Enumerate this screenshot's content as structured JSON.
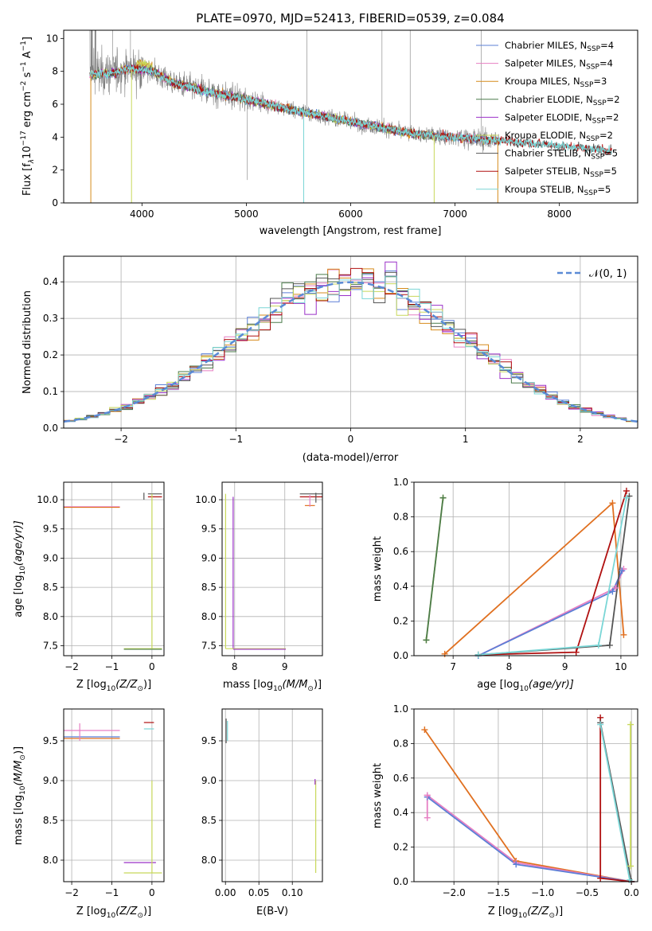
{
  "colors": {
    "chabrier_miles": "#5b7fd6",
    "salpeter_miles": "#e67fc3",
    "kroupa_miles": "#d68b1c",
    "chabrier_elodie": "#4a7a4a",
    "salpeter_elodie": "#9b30c8",
    "kroupa_elodie": "#c8d85a",
    "chabrier_stelib": "#555555",
    "salpeter_stelib": "#b01010",
    "kroupa_stelib": "#7ad6d6",
    "data": "#808080",
    "normal": "#5a8ad6",
    "orange": "#e07020",
    "yellowgreen": "#c0e040"
  },
  "chart_data": [
    {
      "id": "spectrum",
      "type": "line",
      "title": "PLATE=0970, MJD=52413, FIBERID=0539, z=0.084",
      "xlabel": "wavelength [Angstrom, rest frame]",
      "ylabel": "Flux [f",
      "ylabel_parts": [
        "Flux [f",
        "λ",
        "10",
        "−17",
        " erg cm",
        "−2",
        " s",
        "−1",
        " A",
        "−1",
        "]"
      ],
      "xlim": [
        3250,
        8750
      ],
      "ylim": [
        0,
        10.5
      ],
      "xticks": [
        4000,
        5000,
        6000,
        7000,
        8000
      ],
      "yticks": [
        0,
        2,
        4,
        6,
        8,
        10
      ],
      "legend_position": "top-right",
      "legend": [
        {
          "label": "Chabrier MILES, N",
          "sub": "SSP",
          "tail": "=4",
          "color_key": "chabrier_miles"
        },
        {
          "label": "Salpeter MILES, N",
          "sub": "SSP",
          "tail": "=4",
          "color_key": "salpeter_miles"
        },
        {
          "label": "Kroupa MILES, N",
          "sub": "SSP",
          "tail": "=3",
          "color_key": "kroupa_miles"
        },
        {
          "label": "Chabrier ELODIE, N",
          "sub": "SSP",
          "tail": "=2",
          "color_key": "chabrier_elodie"
        },
        {
          "label": "Salpeter ELODIE, N",
          "sub": "SSP",
          "tail": "=2",
          "color_key": "salpeter_elodie"
        },
        {
          "label": "Kroupa ELODIE, N",
          "sub": "SSP",
          "tail": "=2",
          "color_key": "kroupa_elodie"
        },
        {
          "label": "Chabrier STELIB, N",
          "sub": "SSP",
          "tail": "=5",
          "color_key": "chabrier_stelib"
        },
        {
          "label": "Salpeter STELIB, N",
          "sub": "SSP",
          "tail": "=5",
          "color_key": "salpeter_stelib"
        },
        {
          "label": "Kroupa STELIB, N",
          "sub": "SSP",
          "tail": "=5",
          "color_key": "kroupa_stelib"
        }
      ],
      "continuum": {
        "x": [
          3500,
          3700,
          3900,
          4100,
          4300,
          4600,
          5000,
          5400,
          5800,
          6200,
          6600,
          7000,
          7400,
          7800,
          8200,
          8500
        ],
        "y": [
          7.8,
          7.9,
          8.2,
          8.0,
          7.3,
          6.8,
          6.3,
          5.7,
          5.2,
          4.7,
          4.2,
          4.0,
          3.8,
          3.6,
          3.35,
          3.15
        ]
      }
    },
    {
      "id": "residuals",
      "type": "histogram",
      "xlabel": "(data-model)/error",
      "ylabel": "Normed distribution",
      "xlim": [
        -2.5,
        2.5
      ],
      "ylim": [
        0,
        0.47
      ],
      "xticks": [
        -2,
        -1,
        0,
        1,
        2
      ],
      "yticks": [
        0.0,
        0.1,
        0.2,
        0.3,
        0.4
      ],
      "legend_position": "top-right",
      "legend": [
        {
          "label": "𝒩(0, 1)",
          "color_key": "normal"
        }
      ]
    },
    {
      "id": "age_vs_z",
      "type": "scatter",
      "xlabel": "Z [log",
      "xlabel_parts": [
        "Z [log",
        "10",
        "(Z/Z",
        "⊙",
        ")]"
      ],
      "ylabel_parts": [
        "age  [log",
        "10",
        "(age/yr)]"
      ],
      "xlim": [
        -2.2,
        0.3
      ],
      "ylim": [
        7.33,
        10.3
      ],
      "xticks": [
        -2,
        -1,
        0
      ],
      "yticks": [
        7.5,
        8.0,
        8.5,
        9.0,
        9.5,
        10.0
      ],
      "segments": [
        {
          "x": [
            -2.3,
            -0.8
          ],
          "y": [
            9.88,
            9.88
          ],
          "c": "salpeter_miles"
        },
        {
          "x": [
            -2.3,
            -0.8
          ],
          "y": [
            9.87,
            9.87
          ],
          "c": "orange"
        },
        {
          "x": [
            -0.1,
            0.25
          ],
          "y": [
            10.1,
            10.1
          ],
          "c": "chabrier_stelib"
        },
        {
          "x": [
            -0.1,
            0.25
          ],
          "y": [
            10.05,
            10.05
          ],
          "c": "salpeter_stelib"
        },
        {
          "x": [
            -0.7,
            0.25
          ],
          "y": [
            7.45,
            7.45
          ],
          "c": "kroupa_elodie"
        },
        {
          "x": [
            -0.7,
            0.25
          ],
          "y": [
            7.44,
            7.44
          ],
          "c": "chabrier_elodie"
        },
        {
          "x": [
            0.0,
            0.0
          ],
          "y": [
            7.45,
            10.1
          ],
          "c": "kroupa_elodie"
        },
        {
          "x": [
            -0.2,
            -0.2
          ],
          "y": [
            10.0,
            10.12
          ],
          "c": "chabrier_stelib"
        }
      ]
    },
    {
      "id": "age_vs_mass",
      "type": "scatter",
      "xlabel_parts": [
        "mass [log",
        "10",
        "(M/M",
        "⊙",
        ")]"
      ],
      "xlim": [
        7.75,
        9.75
      ],
      "ylim": [
        7.33,
        10.3
      ],
      "xticks": [
        8,
        9
      ],
      "yticks": [
        7.5,
        8.0,
        8.5,
        9.0,
        9.5,
        10.0
      ],
      "segments": [
        {
          "x": [
            7.82,
            7.82
          ],
          "y": [
            7.45,
            10.1
          ],
          "c": "kroupa_elodie"
        },
        {
          "x": [
            7.97,
            7.97
          ],
          "y": [
            7.45,
            10.05
          ],
          "c": "salpeter_elodie"
        },
        {
          "x": [
            7.82,
            9.02
          ],
          "y": [
            7.45,
            7.45
          ],
          "c": "kroupa_elodie"
        },
        {
          "x": [
            7.97,
            9.02
          ],
          "y": [
            7.44,
            7.44
          ],
          "c": "salpeter_elodie"
        },
        {
          "x": [
            9.3,
            9.75
          ],
          "y": [
            10.1,
            10.1
          ],
          "c": "chabrier_stelib"
        },
        {
          "x": [
            9.3,
            9.75
          ],
          "y": [
            10.05,
            10.05
          ],
          "c": "salpeter_stelib"
        },
        {
          "x": [
            9.4,
            9.6
          ],
          "y": [
            9.9,
            9.9
          ],
          "c": "orange"
        },
        {
          "x": [
            9.5,
            9.5
          ],
          "y": [
            9.88,
            10.08
          ],
          "c": "salpeter_miles"
        },
        {
          "x": [
            9.62,
            9.62
          ],
          "y": [
            9.95,
            10.12
          ],
          "c": "chabrier_stelib"
        }
      ]
    },
    {
      "id": "massweight_vs_age",
      "type": "line",
      "xlabel_parts": [
        "age  [log",
        "10",
        "(age/yr)]"
      ],
      "ylabel": "mass weight",
      "xlim": [
        6.3,
        10.3
      ],
      "ylim": [
        0,
        1
      ],
      "xticks": [
        7,
        8,
        9,
        10
      ],
      "yticks": [
        0.0,
        0.2,
        0.4,
        0.6,
        0.8,
        1.0
      ],
      "series": [
        {
          "c": "kroupa_elodie",
          "x": [
            6.52,
            6.82
          ],
          "y": [
            0.09,
            0.91
          ]
        },
        {
          "c": "chabrier_elodie",
          "x": [
            6.52,
            6.82
          ],
          "y": [
            0.09,
            0.91
          ]
        },
        {
          "c": "orange",
          "x": [
            6.85,
            9.85,
            10.05
          ],
          "y": [
            0.01,
            0.88,
            0.12
          ]
        },
        {
          "c": "salpeter_miles",
          "x": [
            7.45,
            9.9,
            10.05
          ],
          "y": [
            0.0,
            0.39,
            0.5
          ]
        },
        {
          "c": "chabrier_miles",
          "x": [
            7.45,
            9.85,
            10.02
          ],
          "y": [
            0.0,
            0.37,
            0.49
          ]
        },
        {
          "c": "salpeter_stelib",
          "x": [
            7.45,
            9.2,
            10.1
          ],
          "y": [
            0.005,
            0.02,
            0.95
          ]
        },
        {
          "c": "chabrier_stelib",
          "x": [
            7.45,
            9.8,
            10.15
          ],
          "y": [
            0.005,
            0.06,
            0.92
          ]
        },
        {
          "c": "kroupa_stelib",
          "x": [
            7.45,
            9.6,
            10.1
          ],
          "y": [
            0.005,
            0.06,
            0.91
          ]
        }
      ]
    },
    {
      "id": "mass_vs_z",
      "type": "scatter",
      "xlabel_parts": [
        "Z [log",
        "10",
        "(Z/Z",
        "⊙",
        ")]"
      ],
      "ylabel_parts": [
        "mass [log",
        "10",
        "(M/M",
        "⊙",
        ")]"
      ],
      "xlim": [
        -2.2,
        0.3
      ],
      "ylim": [
        7.73,
        9.9
      ],
      "xticks": [
        -2,
        -1,
        0
      ],
      "yticks": [
        8.0,
        8.5,
        9.0,
        9.5
      ],
      "segments": [
        {
          "x": [
            -2.3,
            -0.8
          ],
          "y": [
            9.63,
            9.63
          ],
          "c": "salpeter_miles"
        },
        {
          "x": [
            -2.3,
            -0.8
          ],
          "y": [
            9.55,
            9.55
          ],
          "c": "chabrier_miles"
        },
        {
          "x": [
            -2.3,
            -0.8
          ],
          "y": [
            9.53,
            9.53
          ],
          "c": "orange"
        },
        {
          "x": [
            -0.2,
            0.05
          ],
          "y": [
            9.73,
            9.73
          ],
          "c": "salpeter_stelib"
        },
        {
          "x": [
            -0.2,
            0.05
          ],
          "y": [
            9.65,
            9.65
          ],
          "c": "kroupa_stelib"
        },
        {
          "x": [
            -0.7,
            0.1
          ],
          "y": [
            7.97,
            7.97
          ],
          "c": "salpeter_elodie"
        },
        {
          "x": [
            -0.7,
            0.25
          ],
          "y": [
            7.84,
            7.84
          ],
          "c": "kroupa_elodie"
        },
        {
          "x": [
            0.0,
            0.0
          ],
          "y": [
            7.84,
            9.0
          ],
          "c": "kroupa_elodie"
        },
        {
          "x": [
            -1.8,
            -1.8
          ],
          "y": [
            9.5,
            9.72
          ],
          "c": "salpeter_miles"
        }
      ]
    },
    {
      "id": "mass_vs_ebv",
      "type": "scatter",
      "xlabel": "E(B-V)",
      "xlim": [
        -0.005,
        0.145
      ],
      "ylim": [
        7.73,
        9.9
      ],
      "xticks": [
        0.0,
        0.05,
        0.1
      ],
      "xticklabels": [
        "0.00",
        "0.05",
        "0.10"
      ],
      "yticks": [
        8.0,
        8.5,
        9.0,
        9.5
      ],
      "segments": [
        {
          "x": [
            0.001,
            0.001
          ],
          "y": [
            9.47,
            9.78
          ],
          "c": "chabrier_stelib"
        },
        {
          "x": [
            0.003,
            0.003
          ],
          "y": [
            9.5,
            9.75
          ],
          "c": "kroupa_stelib"
        },
        {
          "x": [
            0.135,
            0.135
          ],
          "y": [
            7.84,
            9.0
          ],
          "c": "kroupa_elodie"
        },
        {
          "x": [
            0.134,
            0.134
          ],
          "y": [
            8.95,
            9.02
          ],
          "c": "salpeter_elodie"
        }
      ]
    },
    {
      "id": "massweight_vs_z",
      "type": "line",
      "xlabel_parts": [
        "Z [log",
        "10",
        "(Z/Z",
        "⊙",
        ")]"
      ],
      "ylabel": "mass weight",
      "xlim": [
        -2.45,
        0.07
      ],
      "ylim": [
        0,
        1
      ],
      "xticks": [
        -2.0,
        -1.5,
        -1.0,
        -0.5,
        0.0
      ],
      "xticklabels": [
        "−2.0",
        "−1.5",
        "−1.0",
        "−0.5",
        "0.0"
      ],
      "yticks": [
        0.0,
        0.2,
        0.4,
        0.6,
        0.8,
        1.0
      ],
      "series": [
        {
          "c": "orange",
          "x": [
            -2.33,
            -1.3,
            0.0
          ],
          "y": [
            0.88,
            0.12,
            0.0
          ]
        },
        {
          "c": "salpeter_miles",
          "x": [
            -2.3,
            -1.3,
            0.0
          ],
          "y": [
            0.5,
            0.11,
            0.0
          ]
        },
        {
          "c": "chabrier_miles",
          "x": [
            -2.3,
            -1.3,
            0.0
          ],
          "y": [
            0.49,
            0.1,
            0.0
          ]
        },
        {
          "c": "salpeter_miles",
          "x": [
            -2.3,
            -2.3
          ],
          "y": [
            0.37,
            0.5
          ]
        },
        {
          "c": "salpeter_stelib",
          "x": [
            -0.35,
            -0.35,
            0.0
          ],
          "y": [
            0.95,
            0.02,
            0.0
          ]
        },
        {
          "c": "chabrier_stelib",
          "x": [
            -0.35,
            0.0
          ],
          "y": [
            0.92,
            0.0
          ]
        },
        {
          "c": "kroupa_stelib",
          "x": [
            -0.35,
            -0.02
          ],
          "y": [
            0.91,
            0.01
          ]
        },
        {
          "c": "kroupa_elodie",
          "x": [
            -0.01,
            -0.01
          ],
          "y": [
            0.09,
            0.91
          ]
        }
      ]
    }
  ]
}
